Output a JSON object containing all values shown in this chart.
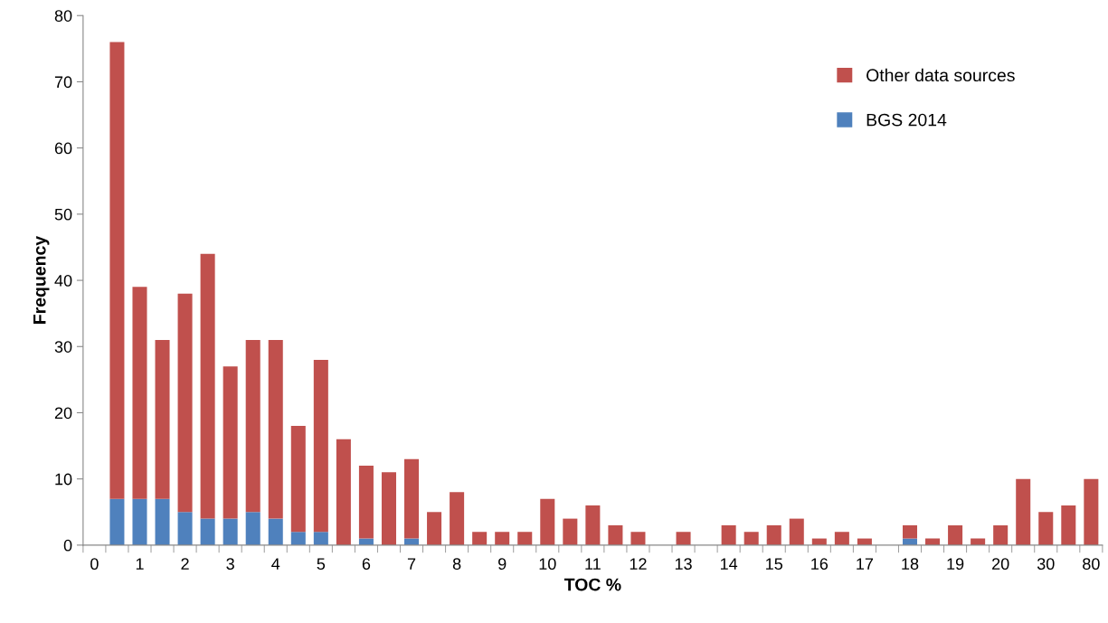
{
  "chart_data": {
    "type": "bar",
    "stacked": true,
    "xlabel": "TOC %",
    "ylabel": "Frequency",
    "categories": [
      "0",
      null,
      "1",
      null,
      "2",
      null,
      "3",
      null,
      "4",
      null,
      "5",
      null,
      "6",
      null,
      "7",
      null,
      "8",
      null,
      "9",
      null,
      "10",
      null,
      "11",
      null,
      "12",
      null,
      "13",
      null,
      "14",
      null,
      "15",
      null,
      "16",
      null,
      "17",
      null,
      "18",
      null,
      "19",
      null,
      "20",
      null,
      "30",
      null,
      "80"
    ],
    "series": [
      {
        "name": "BGS 2014",
        "color": "#4f81bd",
        "values": [
          0,
          7,
          7,
          7,
          5,
          4,
          4,
          5,
          4,
          2,
          2,
          0,
          1,
          0,
          1,
          0,
          0,
          0,
          0,
          0,
          0,
          0,
          0,
          0,
          0,
          0,
          0,
          0,
          0,
          0,
          0,
          0,
          0,
          0,
          0,
          0,
          1,
          0,
          0,
          0,
          0,
          0,
          0,
          0,
          0
        ]
      },
      {
        "name": "Other data sources",
        "color": "#c0504d",
        "values": [
          0,
          69,
          32,
          24,
          33,
          40,
          23,
          26,
          27,
          16,
          26,
          16,
          11,
          11,
          12,
          5,
          8,
          2,
          2,
          2,
          7,
          4,
          6,
          3,
          2,
          0,
          2,
          0,
          3,
          2,
          3,
          4,
          1,
          2,
          1,
          0,
          2,
          1,
          3,
          1,
          3,
          10,
          5,
          6,
          10
        ]
      }
    ],
    "ylim": [
      0,
      80
    ],
    "yticks": [
      0,
      10,
      20,
      30,
      40,
      50,
      60,
      70,
      80
    ],
    "grid": false,
    "legend": "top right"
  }
}
